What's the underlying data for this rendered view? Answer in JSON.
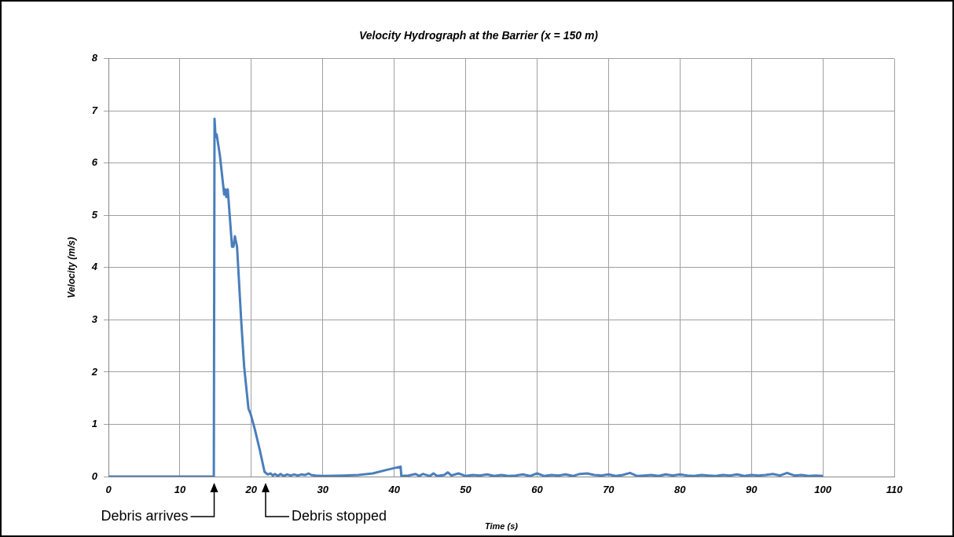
{
  "chart_data": {
    "type": "line",
    "title": "Velocity Hydrograph at the Barrier (x = 150 m)",
    "xlabel": "Time (s)",
    "ylabel": "Velocity (m/s)",
    "xlim": [
      0,
      110
    ],
    "xticks": [
      0,
      10,
      20,
      30,
      40,
      50,
      60,
      70,
      80,
      90,
      100,
      110
    ],
    "ylim": [
      0,
      8
    ],
    "yticks": [
      0,
      1,
      2,
      3,
      4,
      5,
      6,
      7,
      8
    ],
    "grid": true,
    "legend": false,
    "marker": "none",
    "line_style": "solid",
    "annotations": [
      {
        "text": "Debris arrives",
        "x": 14.8,
        "y": 0
      },
      {
        "text": "Debris stopped",
        "x": 22,
        "y": 0
      }
    ],
    "series": [
      {
        "color": "#4a7ebb",
        "x": [
          0,
          14.75,
          14.85,
          15.0,
          15.15,
          15.6,
          16.2,
          16.35,
          16.5,
          16.7,
          17.3,
          17.5,
          17.7,
          18.0,
          18.6,
          19.0,
          19.6,
          19.9,
          20.5,
          21.2,
          21.85,
          22.3,
          22.7,
          23.0,
          23.3,
          23.7,
          24.1,
          24.5,
          25,
          25.5,
          26,
          26.5,
          27,
          27.5,
          28,
          28.4,
          29,
          30,
          33,
          35,
          37,
          39,
          40.9,
          41.0,
          42,
          43,
          43.5,
          44,
          45,
          45.5,
          46,
          47,
          47.5,
          48,
          49,
          50,
          51,
          52,
          53,
          54,
          55,
          56,
          57,
          58,
          59,
          60,
          61,
          62,
          63,
          64,
          65,
          66,
          67,
          68,
          69,
          70,
          71,
          72,
          73,
          74,
          75,
          76,
          77,
          78,
          79,
          80,
          81,
          82,
          83,
          84,
          85,
          86,
          87,
          88,
          89,
          90,
          91,
          92,
          93,
          94,
          95,
          96,
          97,
          98,
          99,
          100
        ],
        "values": [
          0,
          0,
          6.85,
          6.5,
          6.55,
          6.15,
          5.4,
          5.5,
          5.35,
          5.5,
          4.4,
          4.4,
          4.6,
          4.4,
          2.95,
          2.1,
          1.3,
          1.2,
          0.9,
          0.5,
          0.09,
          0.04,
          0.06,
          0.02,
          0.05,
          0.01,
          0.05,
          0.01,
          0.04,
          0.02,
          0.04,
          0.02,
          0.04,
          0.03,
          0.06,
          0.03,
          0.02,
          0.01,
          0.02,
          0.03,
          0.06,
          0.13,
          0.19,
          0.01,
          0.02,
          0.05,
          0.01,
          0.05,
          0.01,
          0.06,
          0.01,
          0.03,
          0.08,
          0.02,
          0.06,
          0.01,
          0.03,
          0.02,
          0.04,
          0.01,
          0.03,
          0.01,
          0.02,
          0.04,
          0.01,
          0.06,
          0.01,
          0.03,
          0.02,
          0.04,
          0.01,
          0.05,
          0.06,
          0.03,
          0.02,
          0.04,
          0.01,
          0.03,
          0.07,
          0.01,
          0.02,
          0.03,
          0.01,
          0.04,
          0.02,
          0.04,
          0.02,
          0.01,
          0.03,
          0.02,
          0.01,
          0.03,
          0.02,
          0.04,
          0.01,
          0.03,
          0.02,
          0.03,
          0.05,
          0.02,
          0.07,
          0.02,
          0.03,
          0.01,
          0.02,
          0.01
        ]
      }
    ]
  }
}
